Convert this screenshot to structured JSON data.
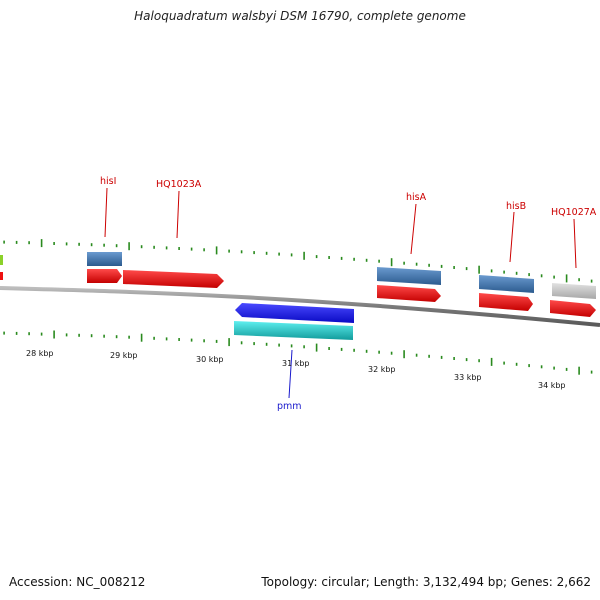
{
  "title": "Haloquadratum walsbyi DSM 16790, complete genome",
  "footer": {
    "accession": "Accession: NC_008212",
    "summary": "Topology: circular; Length: 3,132,494 bp; Genes: 2,662"
  },
  "colors": {
    "backbone": "#8a8a8a",
    "tick": "#2a8a1e",
    "gene_label": "#cc0000",
    "gene_label_reverse": "#1a1acc",
    "cds_forward": "#ee1111",
    "gene_blue": "#3d74b0",
    "gene_grey": "#c4c4c4",
    "cds_reverse": "#1a1aee",
    "gene_cyan": "#1fc6c6"
  },
  "kbp_labels": [
    "28 kbp",
    "29 kbp",
    "30 kbp",
    "31 kbp",
    "32 kbp",
    "33 kbp",
    "34 kbp"
  ],
  "genes": [
    {
      "label": "hisI",
      "strand": "+"
    },
    {
      "label": "HQ1023A",
      "strand": "+"
    },
    {
      "label": "hisA",
      "strand": "+"
    },
    {
      "label": "hisB",
      "strand": "+"
    },
    {
      "label": "HQ1027A",
      "strand": "+"
    },
    {
      "label": "pmm",
      "strand": "-"
    }
  ]
}
